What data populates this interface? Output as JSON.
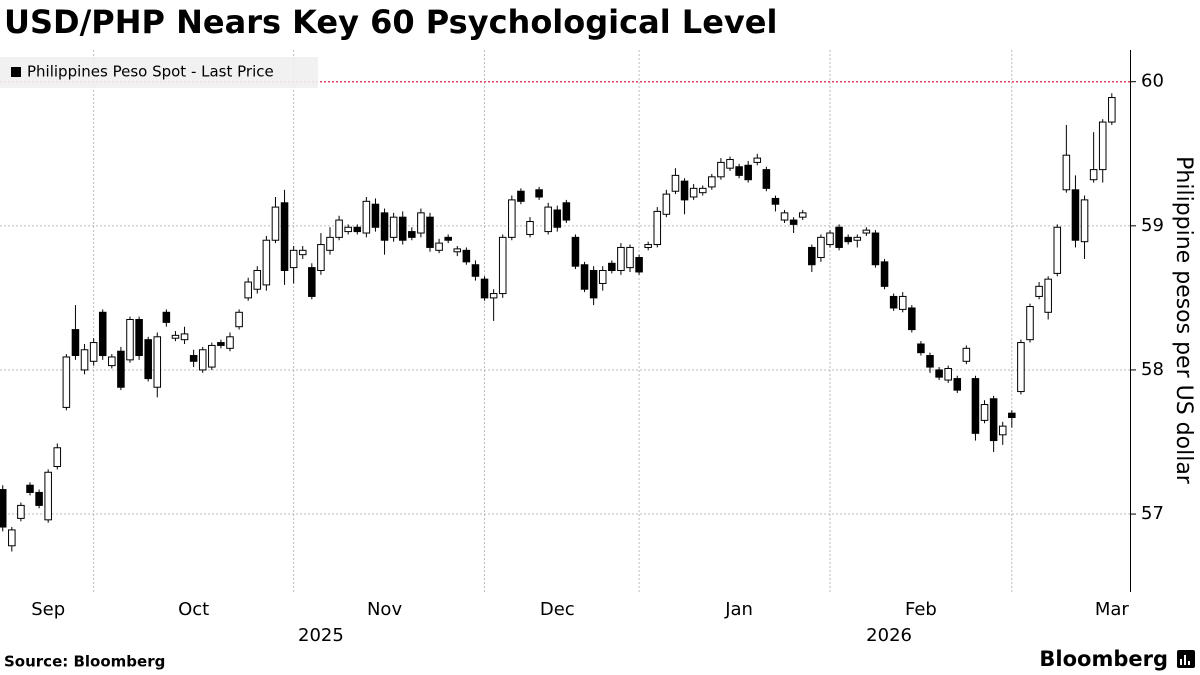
{
  "chart_data": {
    "type": "candlestick",
    "title": "USD/PHP Nears Key 60 Psychological Level",
    "legend": "Philippines Peso Spot - Last Price",
    "ylabel": "Philippine pesos per US dollar",
    "source": "Source: Bloomberg",
    "brand": "Bloomberg",
    "up_color": "#ffffff",
    "down_color": "#000000",
    "edge_color": "#000000",
    "reference_line": {
      "value": 60,
      "color": "#e0475f"
    },
    "xlim": [
      -0.3,
      124
    ],
    "xticks": [
      {
        "value": 5,
        "label": "Sep"
      },
      {
        "value": 21,
        "label": "Oct"
      },
      {
        "value": 42,
        "label": "Nov"
      },
      {
        "value": 61,
        "label": "Dec"
      },
      {
        "value": 81,
        "label": "Jan"
      },
      {
        "value": 101,
        "label": "Feb"
      },
      {
        "value": 122,
        "label": "Mar"
      }
    ],
    "xgrid": [
      10,
      32,
      53,
      70,
      91,
      111
    ],
    "xyears": [
      {
        "value": 35,
        "label": "2025"
      },
      {
        "value": 97.5,
        "label": "2026"
      }
    ],
    "ylim": [
      56.48,
      60.22
    ],
    "yticks": [
      57,
      58,
      59,
      60
    ],
    "grid": true,
    "open": [
      57.17,
      56.78,
      56.97,
      57.2,
      57.15,
      56.96,
      57.33,
      57.74,
      58.28,
      58.0,
      58.06,
      58.4,
      58.03,
      58.13,
      58.07,
      58.35,
      58.21,
      57.88,
      58.4,
      58.22,
      58.21,
      58.1,
      58.0,
      58.02,
      58.19,
      58.15,
      58.3,
      58.5,
      58.56,
      58.59,
      58.9,
      59.16,
      58.71,
      58.8,
      58.71,
      58.69,
      58.83,
      58.92,
      58.96,
      58.99,
      58.95,
      59.15,
      59.09,
      58.92,
      59.06,
      58.96,
      58.95,
      59.06,
      58.83,
      58.92,
      58.82,
      58.83,
      58.73,
      58.63,
      58.5,
      58.53,
      58.92,
      59.24,
      58.94,
      59.25,
      58.96,
      59.11,
      59.16,
      58.92,
      58.73,
      58.69,
      58.6,
      58.74,
      58.69,
      58.71,
      58.78,
      58.85,
      58.87,
      59.08,
      59.24,
      59.31,
      59.2,
      59.23,
      59.27,
      59.34,
      59.4,
      59.41,
      59.42,
      59.44,
      59.39,
      59.19,
      59.04,
      59.04,
      59.06,
      58.85,
      58.78,
      58.87,
      58.99,
      58.92,
      58.9,
      58.95,
      58.95,
      58.75,
      58.51,
      58.42,
      58.43,
      58.18,
      58.1,
      58.0,
      57.93,
      57.94,
      58.06,
      57.94,
      57.65,
      57.8,
      57.55,
      57.7,
      57.85,
      58.21,
      58.51,
      58.4,
      58.67,
      59.25,
      59.25,
      58.89,
      59.32,
      59.39,
      59.72
    ],
    "high": [
      57.2,
      56.91,
      57.08,
      57.22,
      57.17,
      57.31,
      57.49,
      58.11,
      58.45,
      58.18,
      58.22,
      58.42,
      58.11,
      58.16,
      58.37,
      58.37,
      58.23,
      58.26,
      58.42,
      58.27,
      58.3,
      58.14,
      58.16,
      58.19,
      58.21,
      58.26,
      58.42,
      58.64,
      58.72,
      58.93,
      59.2,
      59.25,
      58.86,
      58.86,
      58.74,
      58.95,
      58.99,
      59.07,
      59.01,
      59.01,
      59.2,
      59.19,
      59.12,
      59.09,
      59.1,
      58.99,
      59.12,
      59.09,
      58.91,
      58.94,
      58.86,
      58.85,
      58.76,
      58.65,
      58.56,
      58.94,
      59.21,
      59.26,
      59.06,
      59.27,
      59.16,
      59.14,
      59.18,
      58.94,
      58.75,
      58.72,
      58.72,
      58.76,
      58.88,
      58.87,
      58.8,
      58.89,
      59.13,
      59.25,
      59.4,
      59.33,
      59.29,
      59.28,
      59.36,
      59.47,
      59.48,
      59.43,
      59.45,
      59.5,
      59.41,
      59.21,
      59.11,
      59.06,
      59.11,
      58.87,
      58.94,
      58.97,
      59.01,
      58.94,
      58.94,
      58.99,
      58.97,
      58.77,
      58.53,
      58.54,
      58.45,
      58.2,
      58.12,
      58.02,
      58.03,
      57.96,
      58.17,
      57.96,
      57.79,
      57.82,
      57.64,
      57.72,
      58.21,
      58.46,
      58.61,
      58.65,
      59.01,
      59.7,
      59.35,
      59.21,
      59.65,
      59.74,
      59.92
    ],
    "low": [
      56.88,
      56.74,
      56.95,
      57.13,
      57.04,
      56.94,
      57.31,
      57.72,
      58.07,
      57.97,
      58.03,
      58.07,
      58.01,
      57.86,
      58.05,
      58.07,
      57.92,
      57.81,
      58.3,
      58.2,
      58.18,
      58.02,
      57.98,
      58.0,
      58.15,
      58.13,
      58.28,
      58.48,
      58.53,
      58.55,
      58.88,
      58.59,
      58.6,
      58.77,
      58.49,
      58.66,
      58.8,
      58.9,
      58.94,
      58.94,
      58.92,
      58.96,
      58.8,
      58.89,
      58.87,
      58.9,
      58.92,
      58.82,
      58.81,
      58.88,
      58.79,
      58.73,
      58.62,
      58.48,
      58.34,
      58.5,
      58.9,
      59.15,
      58.92,
      59.18,
      58.94,
      58.96,
      59.02,
      58.7,
      58.54,
      58.45,
      58.55,
      58.67,
      58.66,
      58.68,
      58.66,
      58.83,
      58.85,
      59.06,
      59.22,
      59.08,
      59.18,
      59.21,
      59.25,
      59.32,
      59.38,
      59.33,
      59.3,
      59.42,
      59.24,
      59.1,
      59.02,
      58.95,
      59.04,
      58.68,
      58.75,
      58.85,
      58.83,
      58.87,
      58.85,
      58.93,
      58.71,
      58.56,
      58.41,
      58.4,
      58.26,
      58.1,
      57.98,
      57.93,
      57.91,
      57.84,
      58.04,
      57.51,
      57.63,
      57.43,
      57.48,
      57.6,
      57.83,
      58.19,
      58.49,
      58.35,
      58.65,
      59.23,
      58.85,
      58.77,
      59.3,
      59.3,
      59.7
    ],
    "close": [
      56.91,
      56.89,
      57.06,
      57.15,
      57.06,
      57.29,
      57.46,
      58.09,
      58.1,
      58.14,
      58.19,
      58.1,
      58.09,
      57.88,
      58.35,
      58.1,
      57.94,
      58.23,
      58.33,
      58.24,
      58.25,
      58.06,
      58.14,
      58.17,
      58.17,
      58.23,
      58.4,
      58.61,
      58.69,
      58.9,
      59.13,
      58.69,
      58.83,
      58.83,
      58.51,
      58.87,
      58.92,
      59.04,
      58.99,
      58.96,
      59.17,
      58.99,
      58.9,
      59.06,
      58.9,
      58.92,
      59.09,
      58.85,
      58.88,
      58.9,
      58.84,
      58.75,
      58.65,
      58.5,
      58.53,
      58.92,
      59.18,
      59.17,
      59.03,
      59.2,
      59.13,
      58.99,
      59.04,
      58.72,
      58.56,
      58.5,
      58.69,
      58.69,
      58.85,
      58.85,
      58.68,
      58.87,
      59.1,
      59.22,
      59.35,
      59.18,
      59.26,
      59.26,
      59.34,
      59.44,
      59.46,
      59.35,
      59.32,
      59.47,
      59.26,
      59.15,
      59.09,
      59.01,
      59.09,
      58.73,
      58.92,
      58.95,
      58.85,
      58.89,
      58.92,
      58.97,
      58.73,
      58.58,
      58.43,
      58.51,
      58.28,
      58.12,
      58.02,
      57.95,
      58.01,
      57.86,
      58.15,
      57.56,
      57.76,
      57.51,
      57.61,
      57.67,
      58.19,
      58.44,
      58.58,
      58.63,
      58.99,
      59.49,
      58.9,
      59.18,
      59.39,
      59.72,
      59.89
    ]
  }
}
